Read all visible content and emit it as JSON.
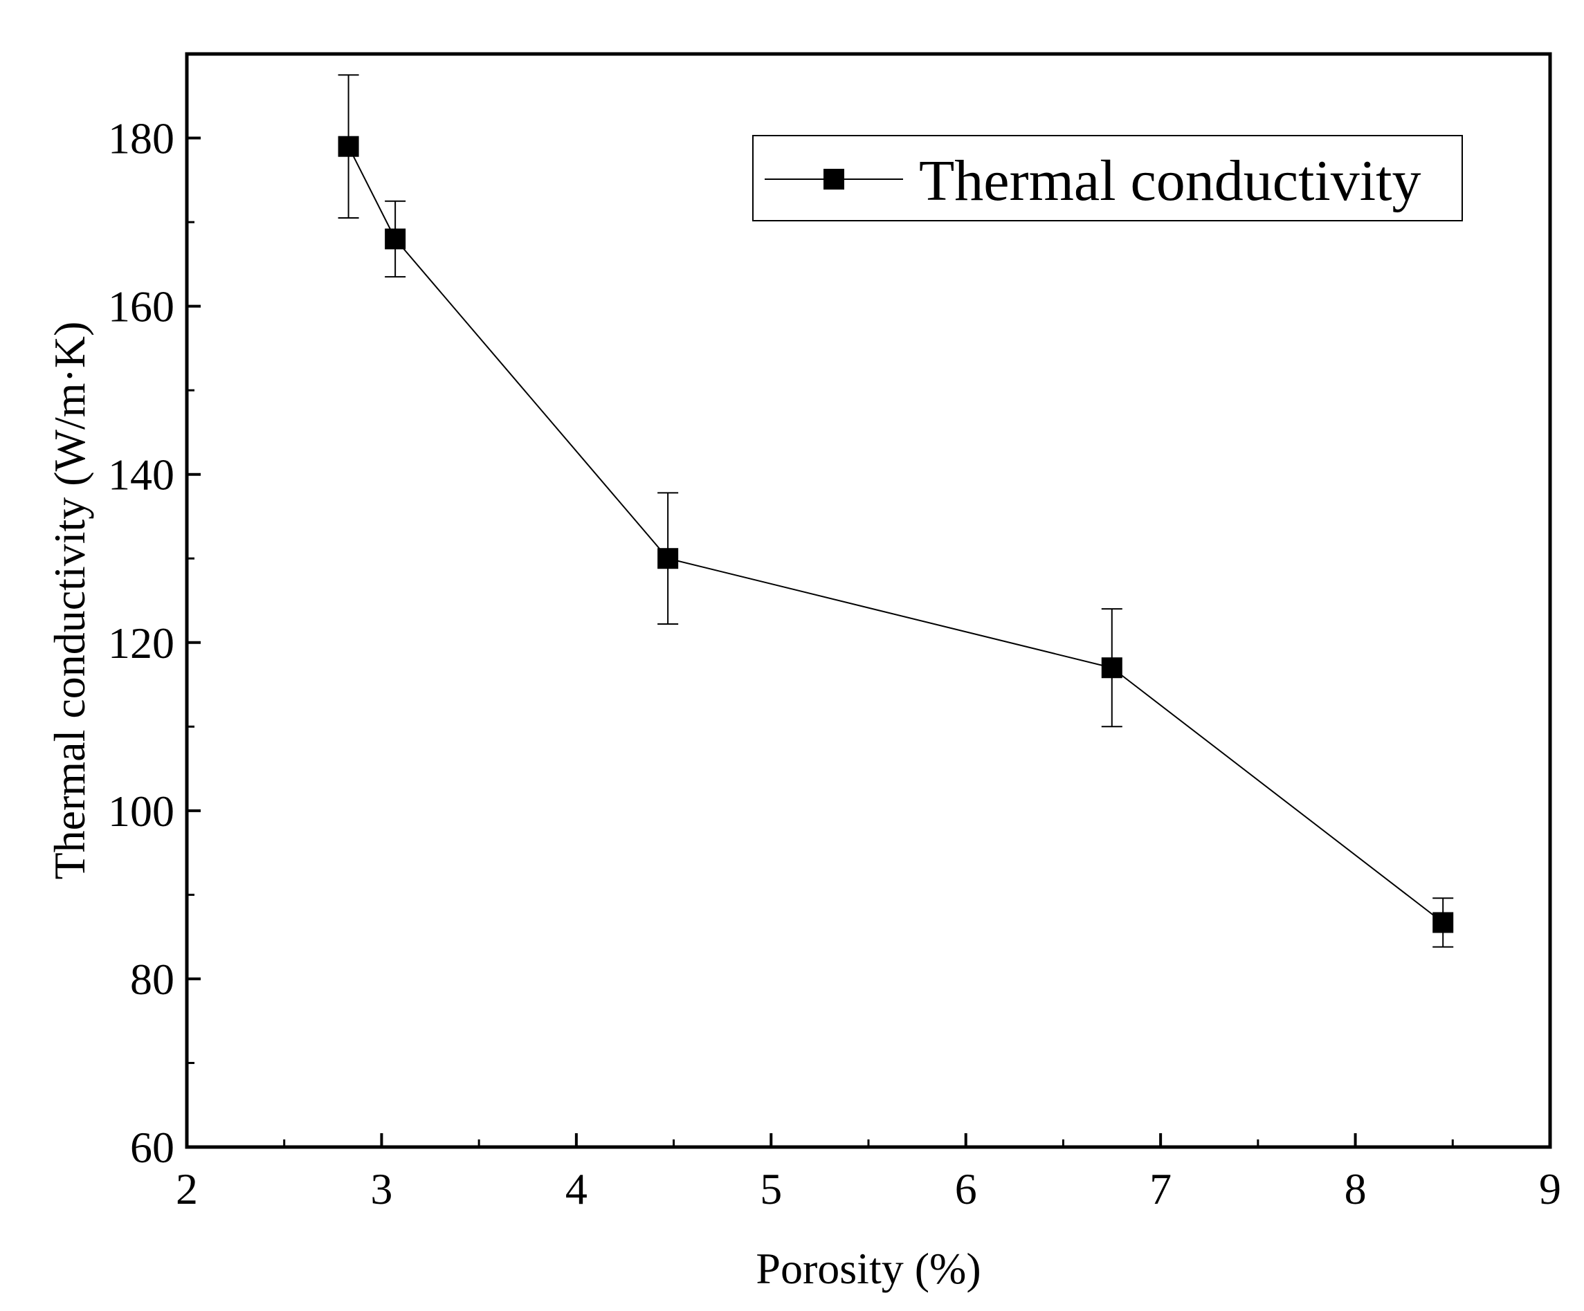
{
  "chart_data": {
    "type": "line",
    "title": "",
    "xlabel": "Porosity (%)",
    "ylabel": "Thermal conductivity (W/m·K)",
    "xlim": [
      2,
      9
    ],
    "ylim": [
      60,
      190
    ],
    "x_ticks": [
      2,
      3,
      4,
      5,
      6,
      7,
      8,
      9
    ],
    "x_tick_labels": [
      "2",
      "3",
      "4",
      "5",
      "6",
      "7",
      "8",
      "9"
    ],
    "y_ticks": [
      60,
      80,
      100,
      120,
      140,
      160,
      180
    ],
    "y_tick_labels": [
      "60",
      "80",
      "100",
      "120",
      "140",
      "160",
      "180"
    ],
    "grid": false,
    "legend_position": "top-right",
    "series": [
      {
        "name": "Thermal conductivity",
        "marker": "square",
        "color": "#000000",
        "points": [
          {
            "x": 2.83,
            "y": 179.0,
            "err": 8.5
          },
          {
            "x": 3.07,
            "y": 168.0,
            "err": 4.5
          },
          {
            "x": 4.47,
            "y": 130.0,
            "err": 7.8
          },
          {
            "x": 6.75,
            "y": 117.0,
            "err": 7.0
          },
          {
            "x": 8.45,
            "y": 86.7,
            "err": 2.9
          }
        ]
      }
    ]
  }
}
